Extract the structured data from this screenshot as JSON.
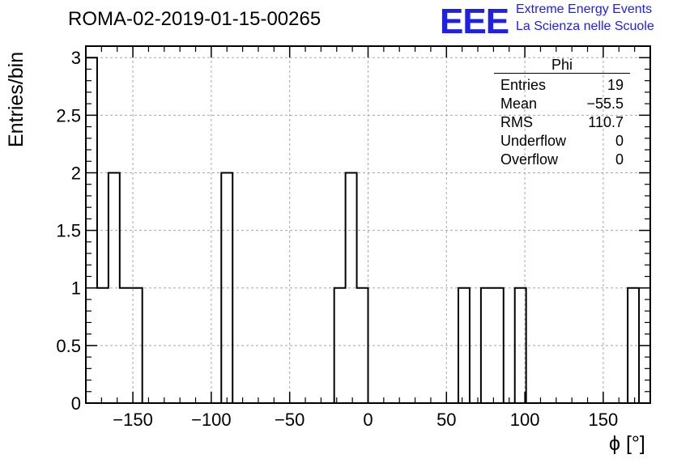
{
  "header": {
    "title": "ROMA-02-2019-01-15-00265",
    "logo": "EEE",
    "logo_line1": "Extreme Energy Events",
    "logo_line2": "La Scienza nelle Scuole"
  },
  "stats_box": {
    "title": "Phi",
    "rows": [
      {
        "label": "Entries",
        "value": "19"
      },
      {
        "label": "Mean",
        "value": "−55.5"
      },
      {
        "label": "RMS",
        "value": "110.7"
      },
      {
        "label": "Underflow",
        "value": "0"
      },
      {
        "label": "Overflow",
        "value": "0"
      }
    ]
  },
  "chart_data": {
    "type": "bar",
    "histogram": true,
    "xlabel": "ϕ [°]",
    "ylabel": "Entries/bin",
    "xlim": [
      -180,
      180
    ],
    "ylim": [
      0,
      3.1
    ],
    "bin_width": 7.2,
    "x_ticks": [
      {
        "value": -150,
        "label": "−150"
      },
      {
        "value": -100,
        "label": "−100"
      },
      {
        "value": -50,
        "label": "−50"
      },
      {
        "value": 0,
        "label": "0"
      },
      {
        "value": 50,
        "label": "50"
      },
      {
        "value": 100,
        "label": "100"
      },
      {
        "value": 150,
        "label": "150"
      }
    ],
    "y_ticks": [
      {
        "value": 0,
        "label": "0"
      },
      {
        "value": 0.5,
        "label": "0.5"
      },
      {
        "value": 1,
        "label": "1"
      },
      {
        "value": 1.5,
        "label": "1.5"
      },
      {
        "value": 2,
        "label": "2"
      },
      {
        "value": 2.5,
        "label": "2.5"
      },
      {
        "value": 3,
        "label": "3"
      }
    ],
    "grid": true,
    "bins": [
      {
        "x_low": -180,
        "x_high": -172.8,
        "count": 3
      },
      {
        "x_low": -172.8,
        "x_high": -165.6,
        "count": 1
      },
      {
        "x_low": -165.6,
        "x_high": -158.4,
        "count": 2
      },
      {
        "x_low": -158.4,
        "x_high": -151.2,
        "count": 1
      },
      {
        "x_low": -151.2,
        "x_high": -144.0,
        "count": 1
      },
      {
        "x_low": -93.6,
        "x_high": -86.4,
        "count": 2
      },
      {
        "x_low": -21.6,
        "x_high": -14.4,
        "count": 1
      },
      {
        "x_low": -14.4,
        "x_high": -7.2,
        "count": 2
      },
      {
        "x_low": -7.2,
        "x_high": 0,
        "count": 1
      },
      {
        "x_low": 57.6,
        "x_high": 64.8,
        "count": 1
      },
      {
        "x_low": 72.0,
        "x_high": 79.2,
        "count": 1
      },
      {
        "x_low": 79.2,
        "x_high": 86.4,
        "count": 1
      },
      {
        "x_low": 93.6,
        "x_high": 100.8,
        "count": 1
      },
      {
        "x_low": 165.6,
        "x_high": 172.8,
        "count": 1
      }
    ]
  }
}
